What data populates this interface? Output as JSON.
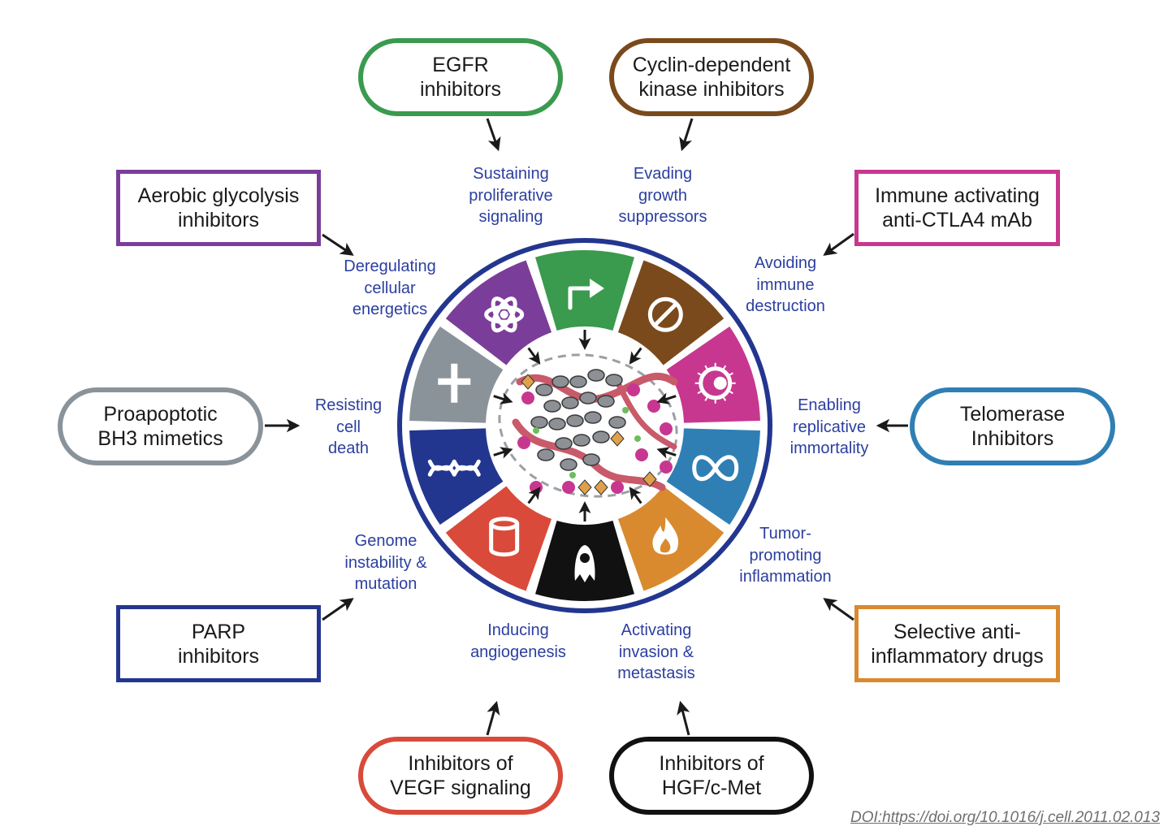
{
  "drugs": {
    "egfr": {
      "label": "EGFR\ninhibitors",
      "color": "#3a9a4e"
    },
    "cdk": {
      "label": "Cyclin-dependent\nkinase inhibitors",
      "color": "#7a4a1c"
    },
    "glycolysis": {
      "label": "Aerobic glycolysis\ninhibitors",
      "color": "#7b3d9a"
    },
    "ctla4": {
      "label": "Immune activating\nanti-CTLA4 mAb",
      "color": "#c8378f"
    },
    "bh3": {
      "label": "Proapoptotic\nBH3 mimetics",
      "color": "#8a939a"
    },
    "telomerase": {
      "label": "Telomerase\nInhibitors",
      "color": "#2f7fb5"
    },
    "parp": {
      "label": "PARP\ninhibitors",
      "color": "#23368f"
    },
    "antiinflam": {
      "label": "Selective anti-\ninflammatory drugs",
      "color": "#d98a2f"
    },
    "vegf": {
      "label": "Inhibitors of\nVEGF signaling",
      "color": "#d94a3a"
    },
    "hgf": {
      "label": "Inhibitors of\nHGF/c-Met",
      "color": "#111111"
    }
  },
  "hallmarks": {
    "proliferative": "Sustaining\nproliferative\nsignaling",
    "growth": "Evading\ngrowth\nsuppressors",
    "energetics": "Deregulating\ncellular\nenergetics",
    "immune": "Avoiding\nimmune\ndestruction",
    "death": "Resisting\ncell\ndeath",
    "immortality": "Enabling\nreplicative\nimmortality",
    "genome": "Genome\ninstability &\nmutation",
    "inflammation": "Tumor-\npromoting\ninflammation",
    "angiogenesis": "Inducing\nangiogenesis",
    "invasion": "Activating\ninvasion &\nmetastasis"
  },
  "wheel": {
    "ring_color": "#23368f",
    "segments": [
      {
        "name": "proliferative",
        "color": "#3a9a4e",
        "icon": "arrow-up-right-icon"
      },
      {
        "name": "growth",
        "color": "#7a4a1c",
        "icon": "prohibition-icon"
      },
      {
        "name": "immune",
        "color": "#c8378f",
        "icon": "immune-cell-icon"
      },
      {
        "name": "immortality",
        "color": "#2f7fb5",
        "icon": "infinity-icon"
      },
      {
        "name": "inflammation",
        "color": "#d98a2f",
        "icon": "flame-icon"
      },
      {
        "name": "invasion",
        "color": "#111111",
        "icon": "migrating-cell-icon"
      },
      {
        "name": "angiogenesis",
        "color": "#d94a3a",
        "icon": "blood-vessel-icon"
      },
      {
        "name": "genome",
        "color": "#23368f",
        "icon": "dna-icon"
      },
      {
        "name": "death",
        "color": "#8a939a",
        "icon": "cross-icon"
      },
      {
        "name": "energetics",
        "color": "#7b3d9a",
        "icon": "atom-icon"
      }
    ]
  },
  "doi": "DOI:https://doi.org/10.1016/j.cell.2011.02.013"
}
